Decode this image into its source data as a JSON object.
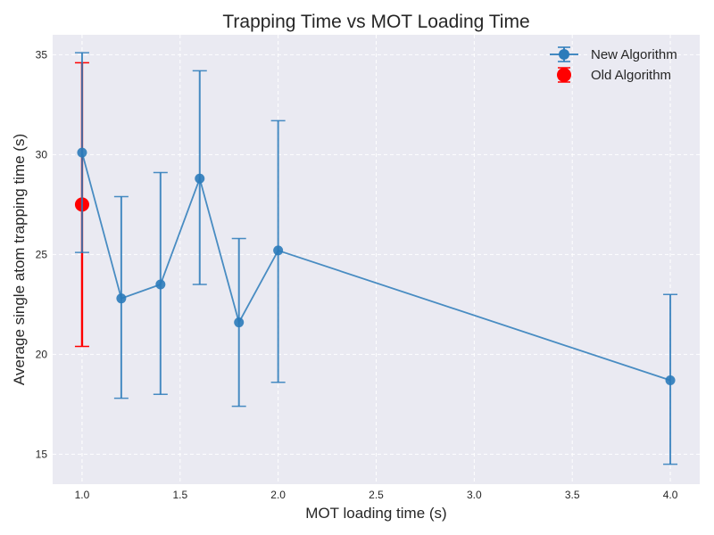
{
  "chart_data": {
    "type": "line",
    "title": "Trapping Time vs MOT Loading Time",
    "xlabel": "MOT loading time (s)",
    "ylabel": "Average single atom trapping time (s)",
    "xlim": [
      0.85,
      4.15
    ],
    "ylim": [
      13.5,
      36.0
    ],
    "x_ticks": [
      1.0,
      1.5,
      2.0,
      2.5,
      3.0,
      3.5,
      4.0
    ],
    "x_tick_labels": [
      "1.0",
      "1.5",
      "2.0",
      "2.5",
      "3.0",
      "3.5",
      "4.0"
    ],
    "y_ticks": [
      15,
      20,
      25,
      30,
      35
    ],
    "y_tick_labels": [
      "15",
      "20",
      "25",
      "30",
      "35"
    ],
    "grid": true,
    "legend_position": "top-right",
    "series": [
      {
        "name": "New Algorithm",
        "color": "#2b7bba",
        "line": true,
        "points": [
          {
            "x": 1.0,
            "y": 30.1,
            "low": 25.1,
            "high": 35.1
          },
          {
            "x": 1.2,
            "y": 22.8,
            "low": 17.8,
            "high": 27.9
          },
          {
            "x": 1.4,
            "y": 23.5,
            "low": 18.0,
            "high": 29.1
          },
          {
            "x": 1.6,
            "y": 28.8,
            "low": 23.5,
            "high": 34.2
          },
          {
            "x": 1.8,
            "y": 21.6,
            "low": 17.4,
            "high": 25.8
          },
          {
            "x": 2.0,
            "y": 25.2,
            "low": 18.6,
            "high": 31.7
          },
          {
            "x": 4.0,
            "y": 18.7,
            "low": 14.5,
            "high": 23.0
          }
        ]
      },
      {
        "name": "Old Algorithm",
        "color": "#ff0000",
        "line": false,
        "points": [
          {
            "x": 1.0,
            "y": 27.5,
            "low": 20.4,
            "high": 34.6
          }
        ]
      }
    ]
  }
}
